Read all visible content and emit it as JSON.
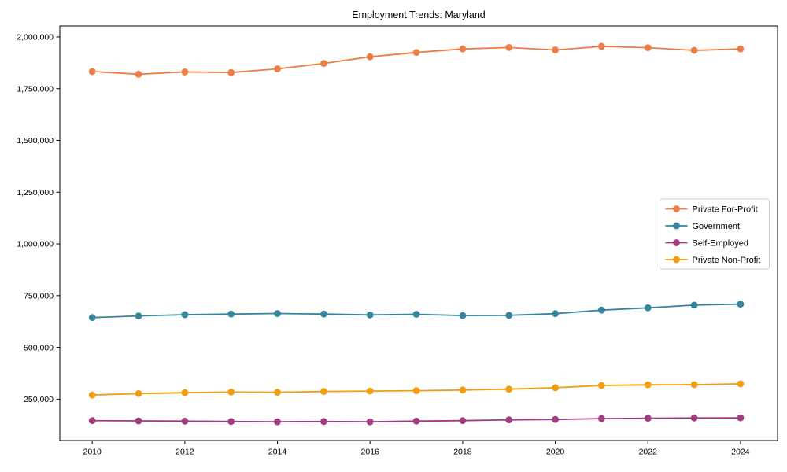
{
  "figure": {
    "background": "#ffffff",
    "axis_color": "#000000"
  },
  "chart_data": {
    "type": "line",
    "title": "Employment Trends: Maryland",
    "xlabel": "",
    "ylabel": "",
    "x": [
      2010,
      2011,
      2012,
      2013,
      2014,
      2015,
      2016,
      2017,
      2018,
      2019,
      2020,
      2021,
      2022,
      2023,
      2024
    ],
    "series": [
      {
        "name": "Private For-Profit",
        "color": "#ED7D45",
        "values": [
          1833000,
          1820000,
          1831000,
          1828000,
          1846000,
          1872000,
          1904000,
          1925000,
          1942000,
          1949000,
          1937000,
          1954000,
          1948000,
          1935000,
          1942000
        ]
      },
      {
        "name": "Government",
        "color": "#35859F",
        "values": [
          644000,
          652000,
          658000,
          661000,
          664000,
          661000,
          657000,
          660000,
          654000,
          655000,
          663000,
          680000,
          691000,
          704000,
          709000
        ]
      },
      {
        "name": "Self-Employed",
        "color": "#A23B80",
        "values": [
          146000,
          145000,
          144000,
          142000,
          141000,
          142000,
          141000,
          144000,
          146000,
          150000,
          152000,
          156000,
          158000,
          159000,
          160000
        ]
      },
      {
        "name": "Private Non-Profit",
        "color": "#F29D0E",
        "values": [
          270000,
          277000,
          281000,
          284000,
          283000,
          287000,
          289000,
          291000,
          294000,
          298000,
          305000,
          316000,
          319000,
          320000,
          324000
        ]
      }
    ],
    "xlim": [
      2009.3,
      2024.8
    ],
    "ylim": [
      50000,
      2053000
    ],
    "x_ticks": [
      2010,
      2012,
      2014,
      2016,
      2018,
      2020,
      2022,
      2024
    ],
    "y_ticks": [
      250000,
      500000,
      750000,
      1000000,
      1250000,
      1500000,
      1750000,
      2000000
    ],
    "grid": false,
    "legend_position": "center-right",
    "legend_border_color": "#cccccc",
    "marker": "circle"
  }
}
